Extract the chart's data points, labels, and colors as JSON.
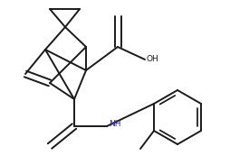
{
  "bg_color": "#ffffff",
  "line_color": "#1a1a1a",
  "text_color": "#1a1a1a",
  "nh_color": "#2222bb",
  "line_width": 1.4,
  "figsize": [
    2.54,
    1.83
  ],
  "dpi": 100
}
